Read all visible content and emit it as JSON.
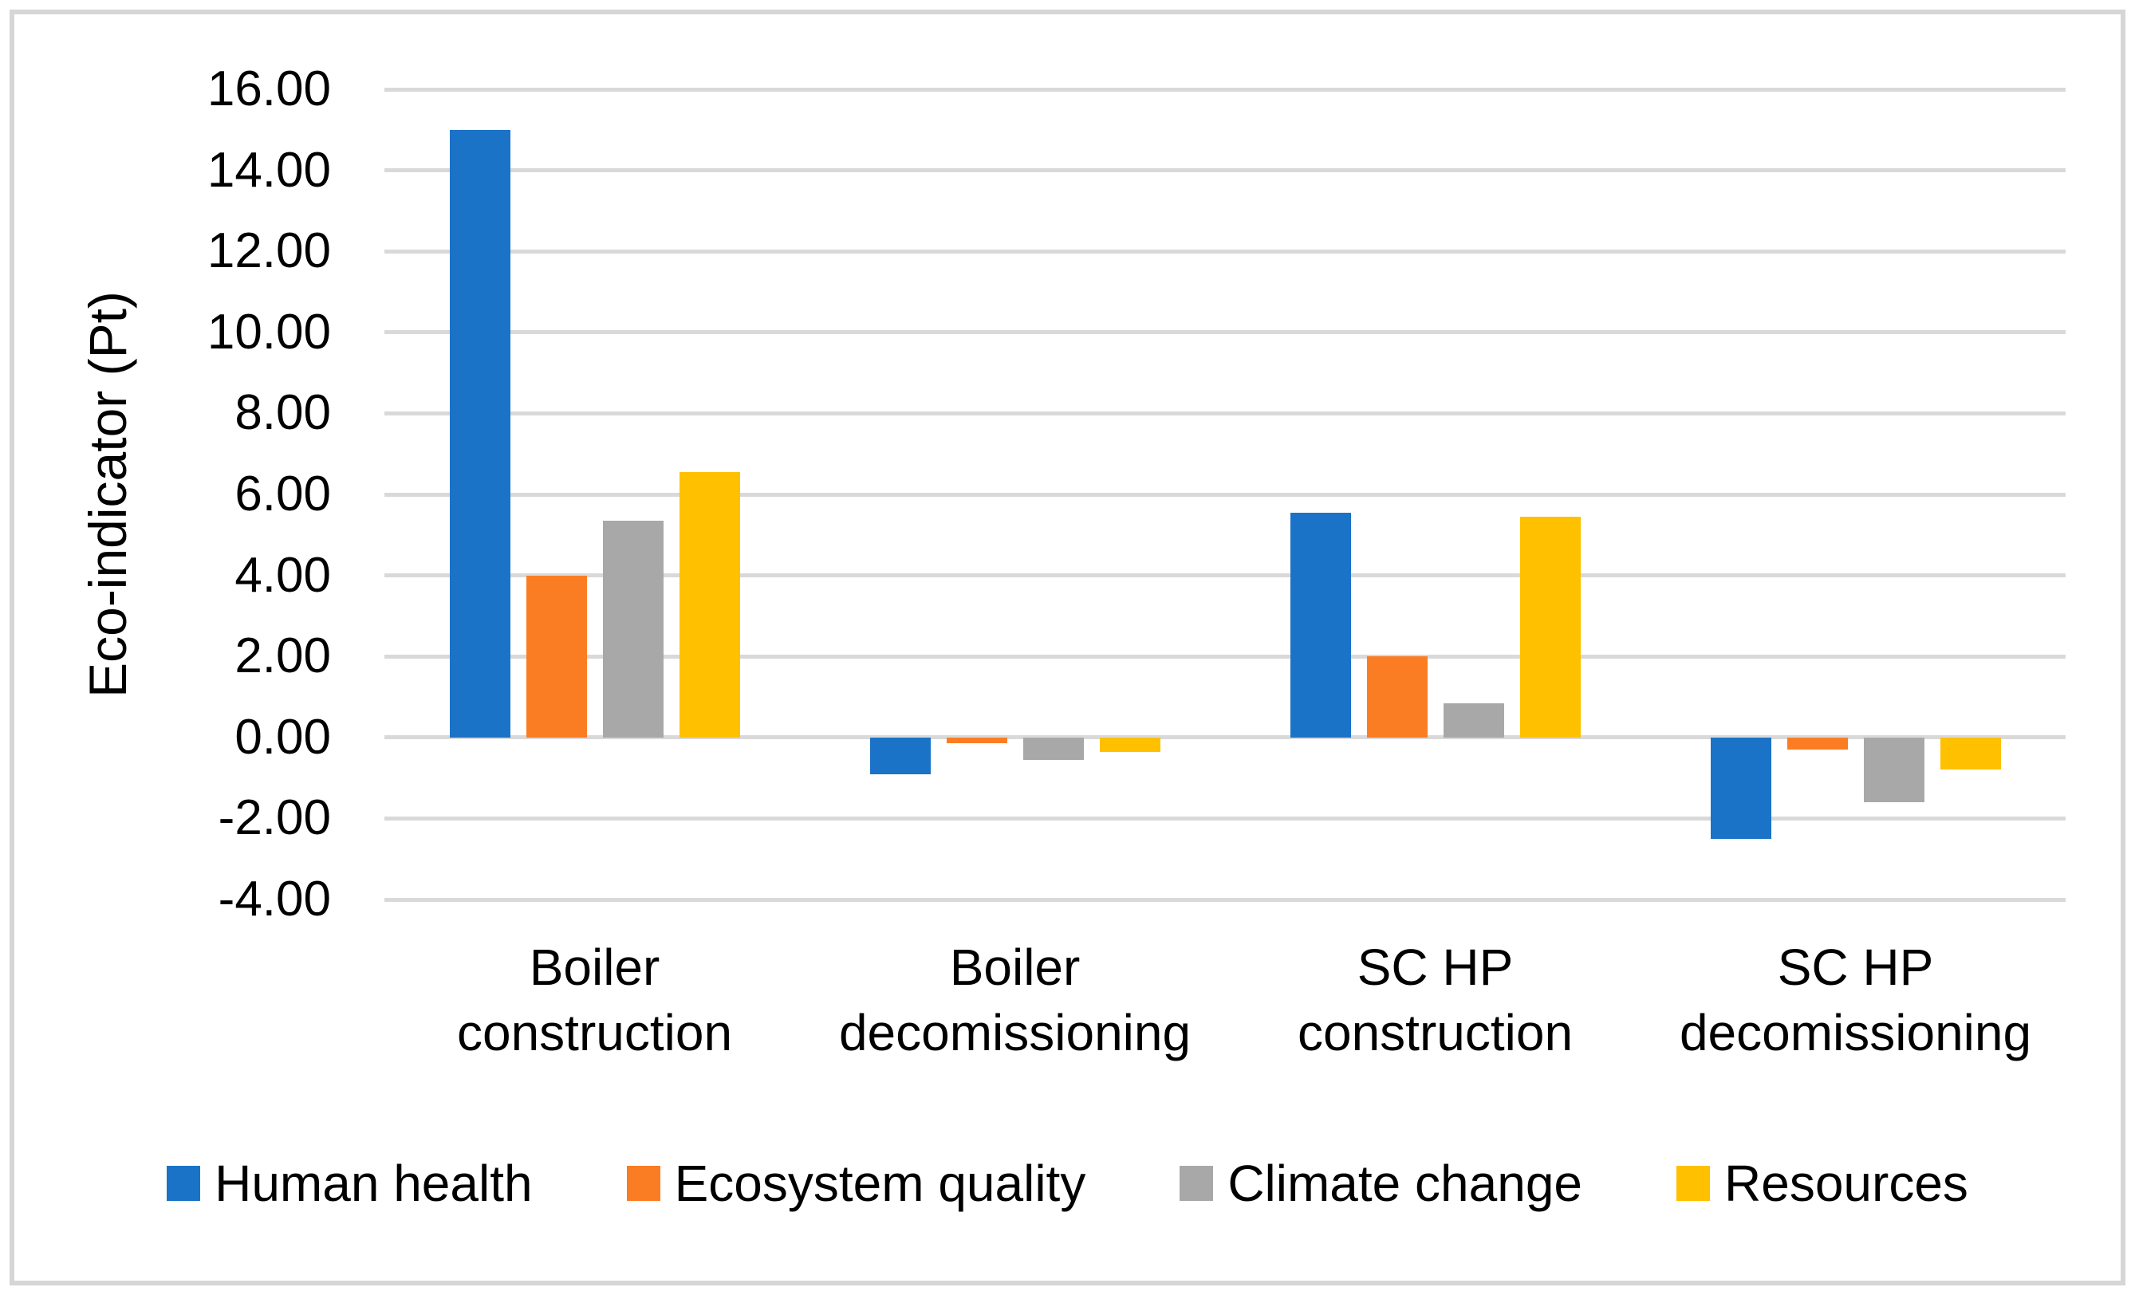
{
  "chart_data": {
    "type": "bar",
    "title": "",
    "ylabel": "Eco-indicator (Pt)",
    "categories": [
      "Boiler construction",
      "Boiler decomissioning",
      "SC HP construction",
      "SC HP decomissioning"
    ],
    "series": [
      {
        "name": "Human health",
        "color": "#1B73C8",
        "values": [
          15.0,
          -0.9,
          5.55,
          -2.5
        ]
      },
      {
        "name": "Ecosystem quality",
        "color": "#FB7D23",
        "values": [
          4.0,
          -0.15,
          2.0,
          -0.3
        ]
      },
      {
        "name": "Climate change",
        "color": "#A8A8A8",
        "values": [
          5.35,
          -0.55,
          0.85,
          -1.6
        ]
      },
      {
        "name": "Resources",
        "color": "#FFC000",
        "values": [
          6.55,
          -0.35,
          5.45,
          -0.8
        ]
      }
    ],
    "ylim": [
      -4,
      16
    ],
    "ytick_step": 2,
    "y_ticks": [
      "16.00",
      "14.00",
      "12.00",
      "10.00",
      "8.00",
      "6.00",
      "4.00",
      "2.00",
      "0.00",
      "-2.00",
      "-4.00"
    ],
    "grid": "horizontal",
    "gridline_color": "#D9D9D9",
    "frame_color": "#D6D6D6",
    "legend_position": "bottom"
  }
}
